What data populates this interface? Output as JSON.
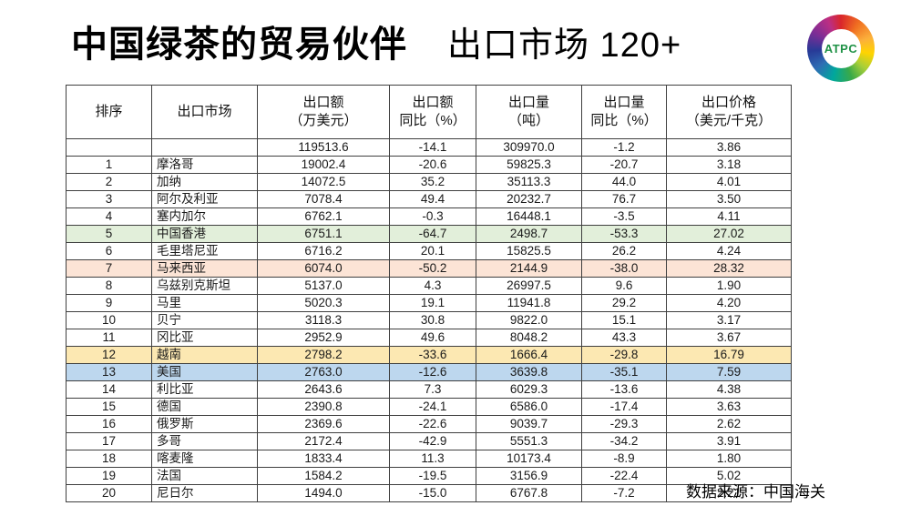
{
  "slide": {
    "title": "中国绿茶的贸易伙伴",
    "subtitle": "出口市场 120+",
    "source": "数据来源：中国海关"
  },
  "logo": {
    "label": "ATPC"
  },
  "colors": {
    "green": "#e2efda",
    "orange": "#fce4d6",
    "yellow": "#fce8b2",
    "blue": "#bdd7ee"
  },
  "table": {
    "headers": [
      {
        "line1": "排序",
        "line2": ""
      },
      {
        "line1": "出口市场",
        "line2": ""
      },
      {
        "line1": "出口额",
        "line2": "（万美元）"
      },
      {
        "line1": "出口额",
        "line2": "同比（%）"
      },
      {
        "line1": "出口量",
        "line2": "（吨）"
      },
      {
        "line1": "出口量",
        "line2": "同比（%）"
      },
      {
        "line1": "出口价格",
        "line2": "（美元/千克）"
      }
    ],
    "rows": [
      [
        "",
        "",
        "119513.6",
        "-14.1",
        "309970.0",
        "-1.2",
        "3.86",
        ""
      ],
      [
        "1",
        "摩洛哥",
        "19002.4",
        "-20.6",
        "59825.3",
        "-20.7",
        "3.18",
        ""
      ],
      [
        "2",
        "加纳",
        "14072.5",
        "35.2",
        "35113.3",
        "44.0",
        "4.01",
        ""
      ],
      [
        "3",
        "阿尔及利亚",
        "7078.4",
        "49.4",
        "20232.7",
        "76.7",
        "3.50",
        ""
      ],
      [
        "4",
        "塞内加尔",
        "6762.1",
        "-0.3",
        "16448.1",
        "-3.5",
        "4.11",
        ""
      ],
      [
        "5",
        "中国香港",
        "6751.1",
        "-64.7",
        "2498.7",
        "-53.3",
        "27.02",
        "green"
      ],
      [
        "6",
        "毛里塔尼亚",
        "6716.2",
        "20.1",
        "15825.5",
        "26.2",
        "4.24",
        ""
      ],
      [
        "7",
        "马来西亚",
        "6074.0",
        "-50.2",
        "2144.9",
        "-38.0",
        "28.32",
        "orange"
      ],
      [
        "8",
        "乌兹别克斯坦",
        "5137.0",
        "4.3",
        "26997.5",
        "9.6",
        "1.90",
        ""
      ],
      [
        "9",
        "马里",
        "5020.3",
        "19.1",
        "11941.8",
        "29.2",
        "4.20",
        ""
      ],
      [
        "10",
        "贝宁",
        "3118.3",
        "30.8",
        "9822.0",
        "15.1",
        "3.17",
        ""
      ],
      [
        "11",
        "冈比亚",
        "2952.9",
        "49.6",
        "8048.2",
        "43.3",
        "3.67",
        ""
      ],
      [
        "12",
        "越南",
        "2798.2",
        "-33.6",
        "1666.4",
        "-29.8",
        "16.79",
        "yellow"
      ],
      [
        "13",
        "美国",
        "2763.0",
        "-12.6",
        "3639.8",
        "-35.1",
        "7.59",
        "blue"
      ],
      [
        "14",
        "利比亚",
        "2643.6",
        "7.3",
        "6029.3",
        "-13.6",
        "4.38",
        ""
      ],
      [
        "15",
        "德国",
        "2390.8",
        "-24.1",
        "6586.0",
        "-17.4",
        "3.63",
        ""
      ],
      [
        "16",
        "俄罗斯",
        "2369.6",
        "-22.6",
        "9039.7",
        "-29.3",
        "2.62",
        ""
      ],
      [
        "17",
        "多哥",
        "2172.4",
        "-42.9",
        "5551.3",
        "-34.2",
        "3.91",
        ""
      ],
      [
        "18",
        "喀麦隆",
        "1833.4",
        "11.3",
        "10173.4",
        "-8.9",
        "1.80",
        ""
      ],
      [
        "19",
        "法国",
        "1584.2",
        "-19.5",
        "3156.9",
        "-22.4",
        "5.02",
        ""
      ],
      [
        "20",
        "尼日尔",
        "1494.0",
        "-15.0",
        "6767.8",
        "-7.2",
        "2.21",
        ""
      ]
    ]
  }
}
